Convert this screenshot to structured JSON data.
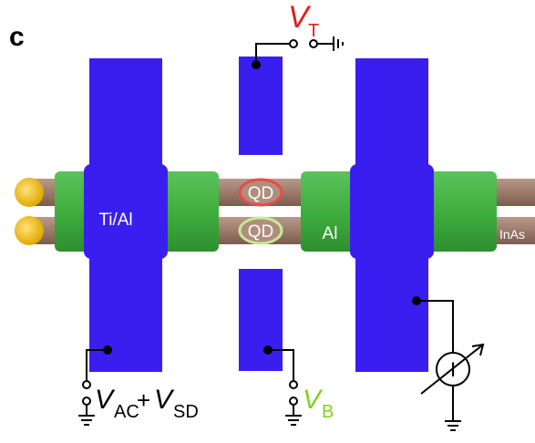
{
  "panel_letter": "c",
  "labels": {
    "vt": {
      "main": "V",
      "sub": "T",
      "color": "#e01e1e"
    },
    "vb": {
      "main": "V",
      "sub": "B",
      "color": "#7ed321"
    },
    "vac_sd": {
      "v1": "V",
      "s1": "AC",
      "plus": "+",
      "v2": "V",
      "s2": "SD"
    },
    "qd_top": "QD",
    "qd_bottom": "QD",
    "tial": "Ti/Al",
    "al": "Al",
    "inas": "InAs",
    "ammeter_symbol": "I"
  },
  "colors": {
    "gate_blue": "#3a1ef0",
    "al_green": "#3fae3f",
    "nanowire_brown": "#9c7b6b",
    "contact_yellow": "#f5c518",
    "qd_red_ring": "#e84a4a",
    "qd_green_ring": "#7ed321",
    "wire_black": "#000000"
  }
}
